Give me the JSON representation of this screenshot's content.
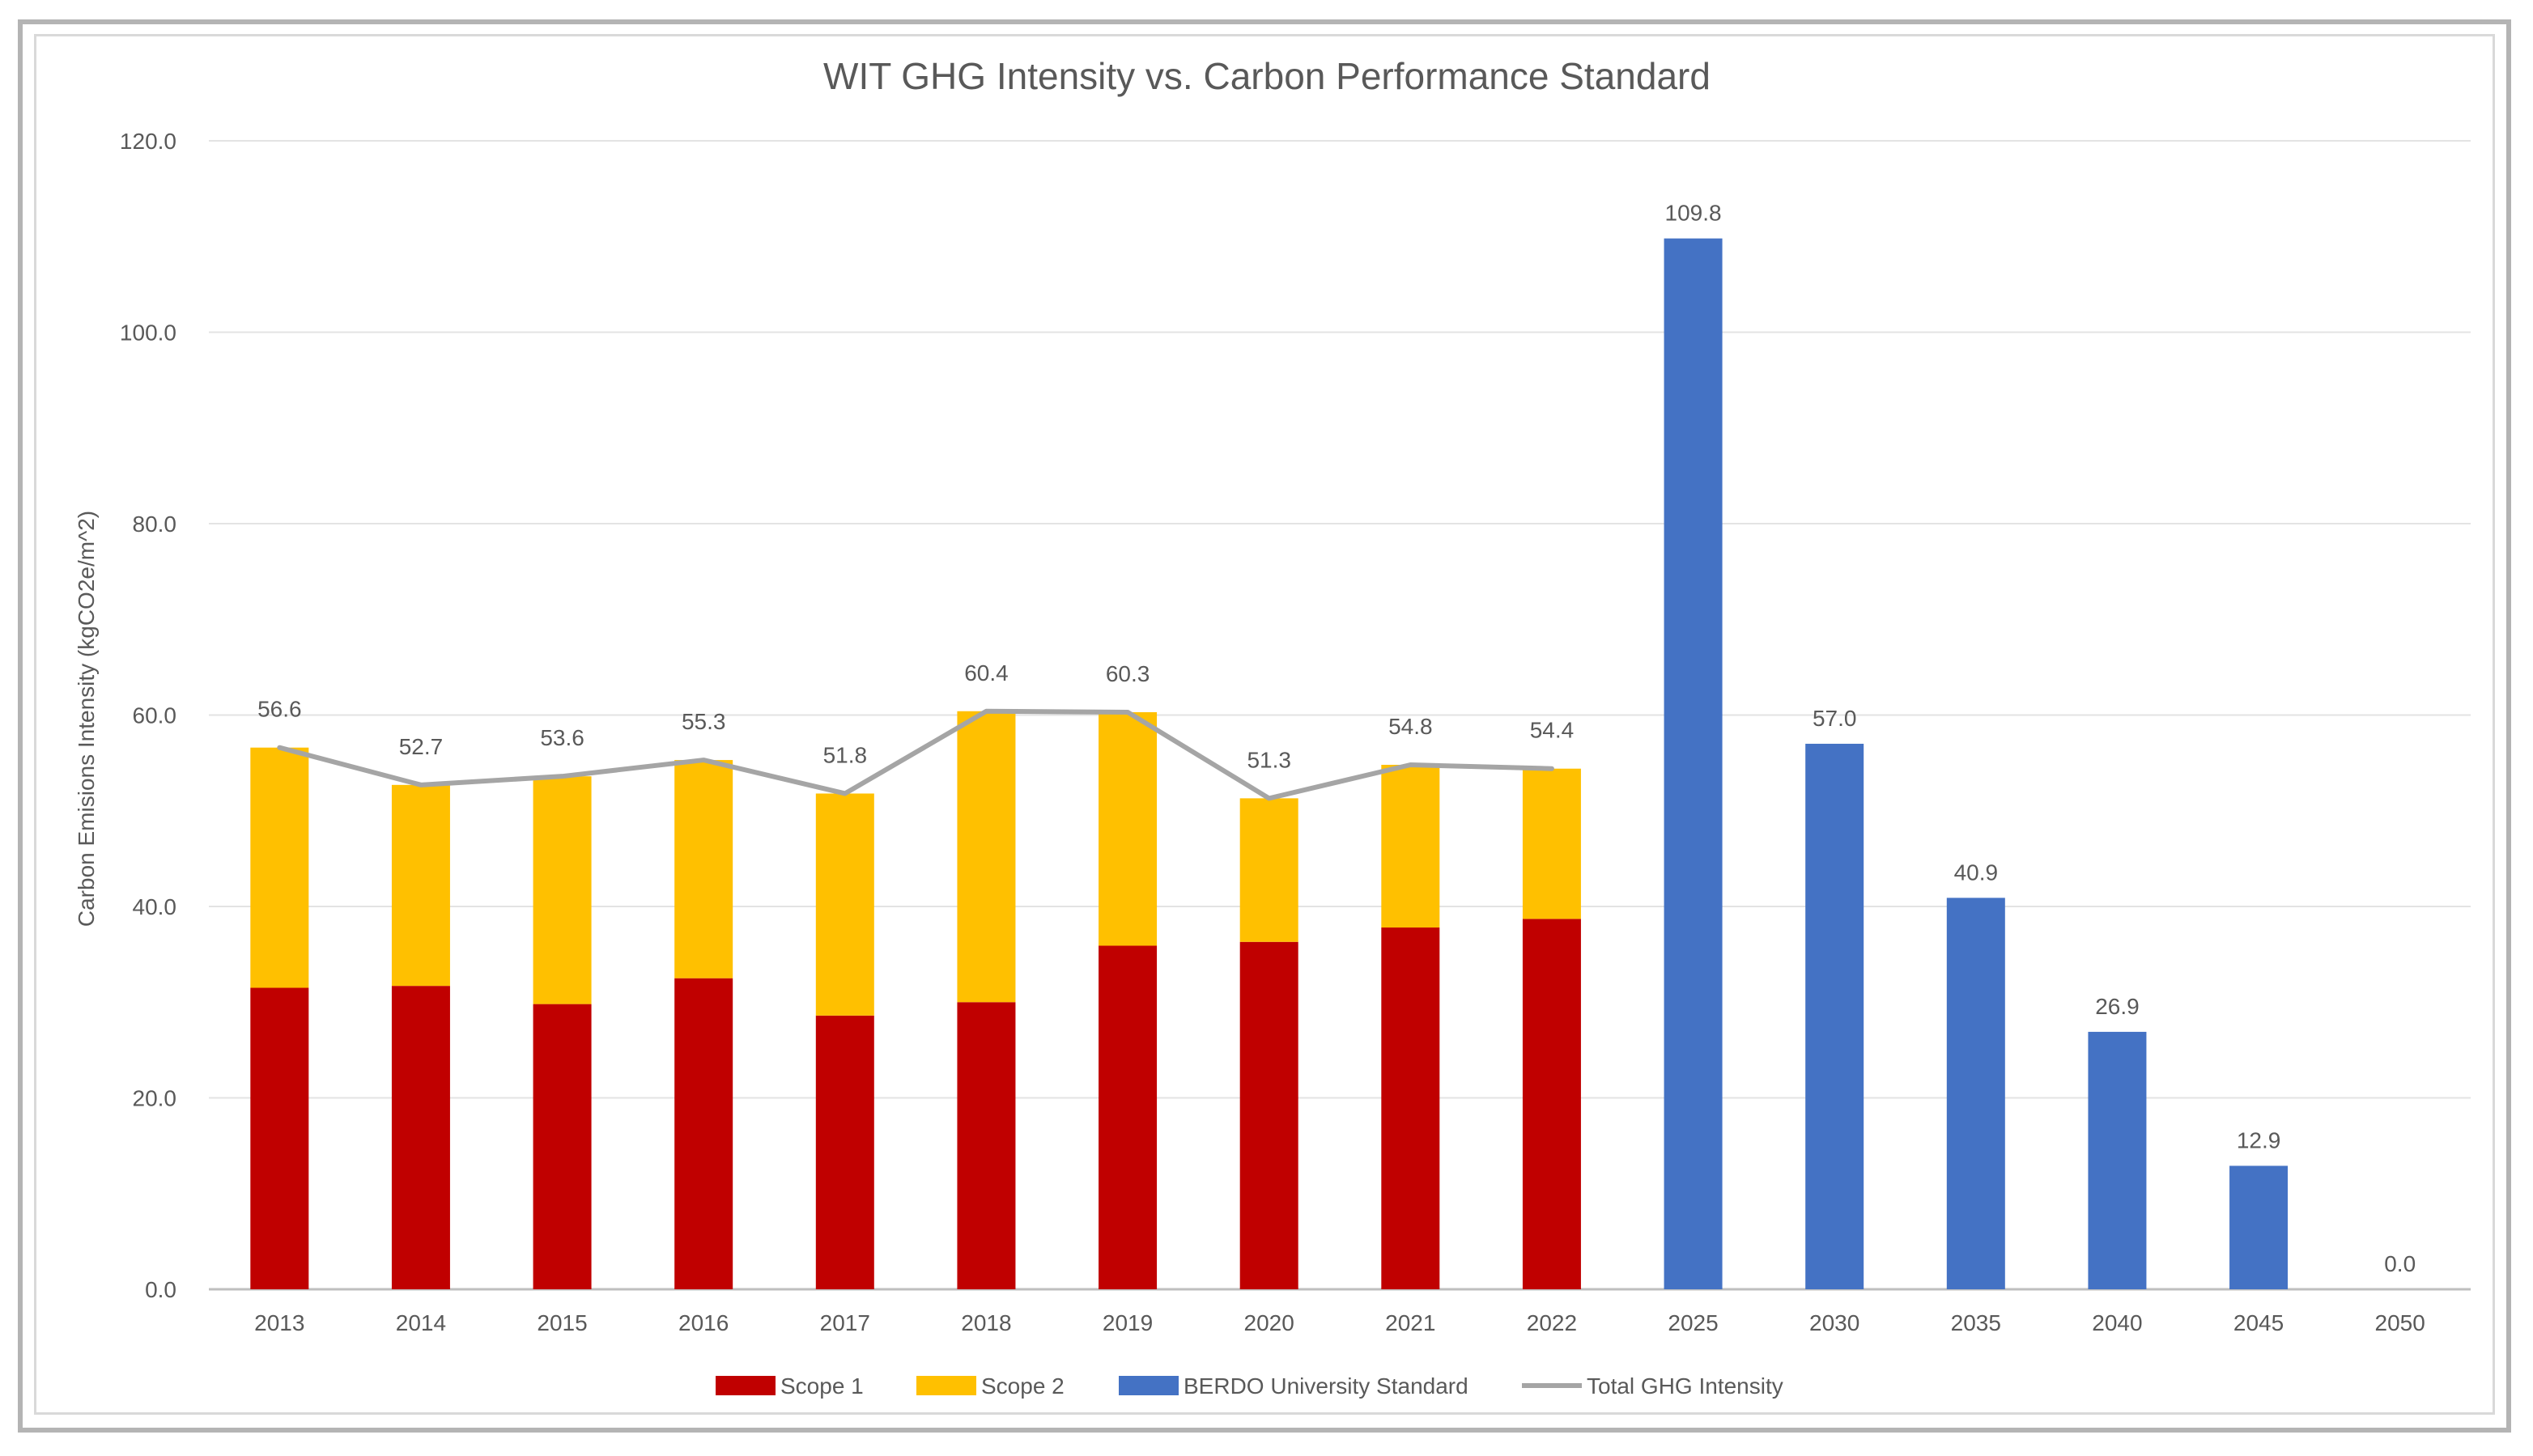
{
  "chart_data": {
    "type": "bar",
    "title": "WIT GHG Intensity vs. Carbon Performance Standard",
    "xlabel": "",
    "ylabel": "Carbon Emisions Intensity (kgCO2e/m^2)",
    "ylim": [
      0,
      120
    ],
    "yticks": [
      "0.0",
      "20.0",
      "40.0",
      "60.0",
      "80.0",
      "100.0",
      "120.0"
    ],
    "grid": true,
    "legend_position": "bottom",
    "categories": [
      "2013",
      "2014",
      "2015",
      "2016",
      "2017",
      "2018",
      "2019",
      "2020",
      "2021",
      "2022",
      "2025",
      "2030",
      "2035",
      "2040",
      "2045",
      "2050"
    ],
    "series": [
      {
        "name": "Scope 1",
        "type": "stacked-bar",
        "color": "#c00000",
        "values": [
          31.5,
          31.7,
          29.8,
          32.5,
          28.6,
          30.0,
          35.9,
          36.3,
          37.8,
          38.7,
          null,
          null,
          null,
          null,
          null,
          null
        ]
      },
      {
        "name": "Scope 2",
        "type": "stacked-bar",
        "color": "#ffc000",
        "values": [
          25.1,
          21.0,
          23.8,
          22.8,
          23.2,
          30.4,
          24.4,
          15.0,
          17.0,
          15.7,
          null,
          null,
          null,
          null,
          null,
          null
        ]
      },
      {
        "name": "BERDO University Standard",
        "type": "bar",
        "color": "#4472c4",
        "values": [
          null,
          null,
          null,
          null,
          null,
          null,
          null,
          null,
          null,
          null,
          109.8,
          57.0,
          40.9,
          26.9,
          12.9,
          0.0
        ],
        "labels": [
          null,
          null,
          null,
          null,
          null,
          null,
          null,
          null,
          null,
          null,
          "109.8",
          "57.0",
          "40.9",
          "26.9",
          "12.9",
          "0.0"
        ]
      },
      {
        "name": "Total GHG Intensity",
        "type": "line",
        "color": "#a5a5a5",
        "values": [
          56.6,
          52.7,
          53.6,
          55.3,
          51.8,
          60.4,
          60.3,
          51.3,
          54.8,
          54.4,
          null,
          null,
          null,
          null,
          null,
          null
        ],
        "labels": [
          "56.6",
          "52.7",
          "53.6",
          "55.3",
          "51.8",
          "60.4",
          "60.3",
          "51.3",
          "54.8",
          "54.4",
          null,
          null,
          null,
          null,
          null,
          null
        ]
      }
    ]
  }
}
